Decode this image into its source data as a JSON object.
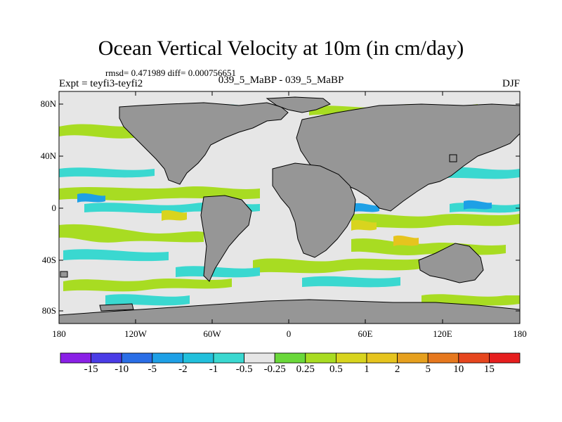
{
  "header": {
    "title": "Ocean Vertical Velocity at 10m (in cm/day)",
    "stats": "rmsd= 0.471989 diff= 0.000756651",
    "center_label": "039_5_MaBP - 039_5_MaBP",
    "expt": "Expt = teyfi3-teyfi2",
    "season": "DJF"
  },
  "map": {
    "lat_labels": [
      "80N",
      "40N",
      "0",
      "40S",
      "80S"
    ],
    "lon_labels": [
      "180",
      "120W",
      "60W",
      "0",
      "60E",
      "120E",
      "180"
    ],
    "land_color": "#969696",
    "ocean_base_color": "#e6e6e6"
  },
  "colorbar": {
    "labels": [
      "-15",
      "-10",
      "-5",
      "-2",
      "-1",
      "-0.5",
      "-0.25",
      "0.25",
      "0.5",
      "1",
      "2",
      "5",
      "10",
      "15"
    ],
    "colors": [
      "#8a20e6",
      "#4a3ce6",
      "#2a6ee6",
      "#1ea0e6",
      "#22c0dc",
      "#3ad8d0",
      "#e6e6e6",
      "#6ad83a",
      "#a8dc22",
      "#d8d41e",
      "#e6c41e",
      "#e6a01e",
      "#e6781e",
      "#e6461e",
      "#e61e1e"
    ]
  }
}
